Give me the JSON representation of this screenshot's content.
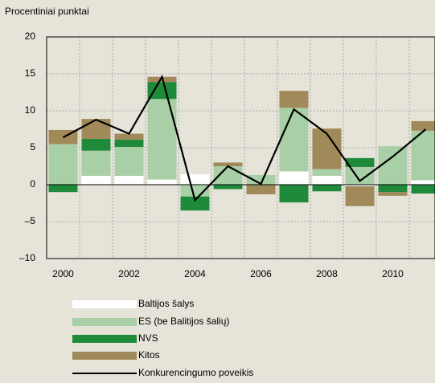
{
  "chart_data": {
    "type": "bar",
    "subtitle": "Procentiniai punktai",
    "categories": [
      "2000",
      null,
      "2002",
      null,
      "2004",
      null,
      "2006",
      null,
      "2008",
      null,
      "2010",
      null
    ],
    "series": [
      {
        "name": "Baltijos šalys",
        "color": "#ffffff",
        "values": [
          0,
          1.2,
          1.2,
          0.7,
          1.4,
          0,
          0,
          1.8,
          1.2,
          -0.2,
          0,
          0.6
        ]
      },
      {
        "name": "ES (be Balitijos šalių)",
        "color": "#a9cfa6",
        "values": [
          5.5,
          3.4,
          3.9,
          10.9,
          -1.6,
          2.5,
          1.3,
          8.6,
          0.9,
          2.4,
          5.2,
          6.7
        ]
      },
      {
        "name": "NVS",
        "color": "#1f8a3a",
        "values": [
          -1,
          1.6,
          1,
          2.3,
          -1.9,
          -0.6,
          0,
          -2.4,
          -0.9,
          1.2,
          -1,
          -1.2
        ]
      },
      {
        "name": "Kitos",
        "color": "#a08a5a",
        "values": [
          1.9,
          2.7,
          0.8,
          0.7,
          0,
          0.5,
          -1.3,
          2.3,
          5.5,
          -2.7,
          -0.5,
          1.3
        ]
      }
    ],
    "line": {
      "name": "Konkurencingumo poveikis",
      "color": "#000000",
      "values": [
        6.4,
        8.8,
        6.9,
        14.6,
        -2.1,
        2.5,
        0.1,
        10.2,
        6.9,
        0.5,
        3.8,
        7.5
      ]
    },
    "ylim": [
      -10,
      20
    ],
    "yticks": [
      20,
      15,
      10,
      5,
      0,
      {
        "value": -5,
        "label": "–5"
      },
      {
        "value": -10,
        "label": "–10"
      }
    ],
    "grid": true
  }
}
